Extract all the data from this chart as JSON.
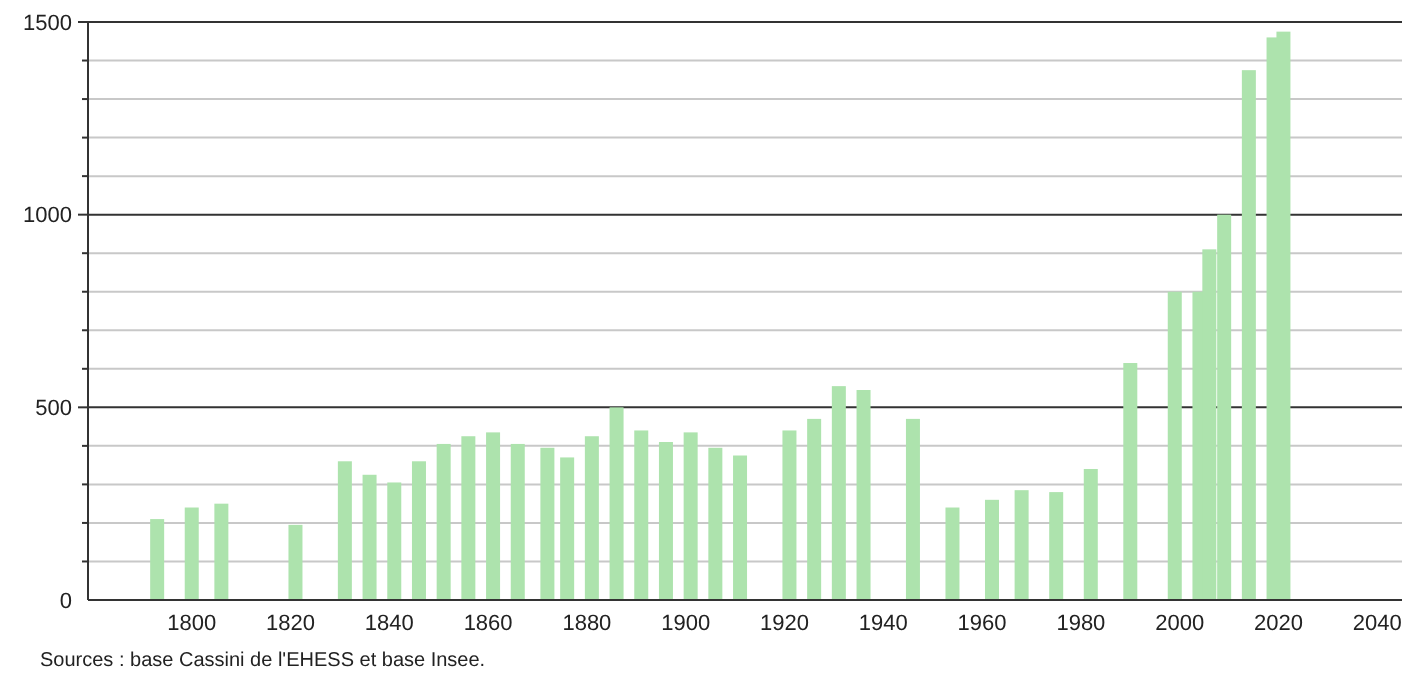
{
  "chart_data": {
    "type": "bar",
    "x": [
      1793,
      1800,
      1806,
      1821,
      1831,
      1836,
      1841,
      1846,
      1851,
      1856,
      1861,
      1866,
      1872,
      1876,
      1881,
      1886,
      1891,
      1896,
      1901,
      1906,
      1911,
      1921,
      1926,
      1931,
      1936,
      1946,
      1954,
      1962,
      1968,
      1975,
      1982,
      1990,
      1999,
      2004,
      2006,
      2009,
      2014,
      2019,
      2021
    ],
    "values": [
      210,
      240,
      250,
      195,
      360,
      325,
      305,
      360,
      405,
      425,
      435,
      405,
      395,
      370,
      425,
      500,
      440,
      410,
      435,
      395,
      375,
      440,
      470,
      555,
      545,
      470,
      240,
      260,
      285,
      280,
      340,
      615,
      800,
      800,
      910,
      1000,
      1375,
      1460,
      1475
    ],
    "color": "#ade3ad",
    "xlim": [
      1779,
      2045
    ],
    "xticks": [
      1800,
      1820,
      1840,
      1860,
      1880,
      1900,
      1920,
      1940,
      1960,
      1980,
      2000,
      2020,
      2040
    ],
    "ylim": [
      0,
      1500
    ],
    "yticks": [
      0,
      {
        "value": 100,
        "label": null
      },
      {
        "value": 200,
        "label": null
      },
      {
        "value": 300,
        "label": null
      },
      {
        "value": 400,
        "label": null
      },
      500,
      {
        "value": 600,
        "label": null
      },
      {
        "value": 700,
        "label": null
      },
      {
        "value": 800,
        "label": null
      },
      {
        "value": 900,
        "label": null
      },
      1000,
      {
        "value": 1100,
        "label": null
      },
      {
        "value": 1200,
        "label": null
      },
      {
        "value": 1300,
        "label": null
      },
      {
        "value": 1400,
        "label": null
      },
      1500
    ],
    "grid": "y",
    "annotations": [
      "Sources : base Cassini de l'EHESS et base Insee."
    ]
  }
}
